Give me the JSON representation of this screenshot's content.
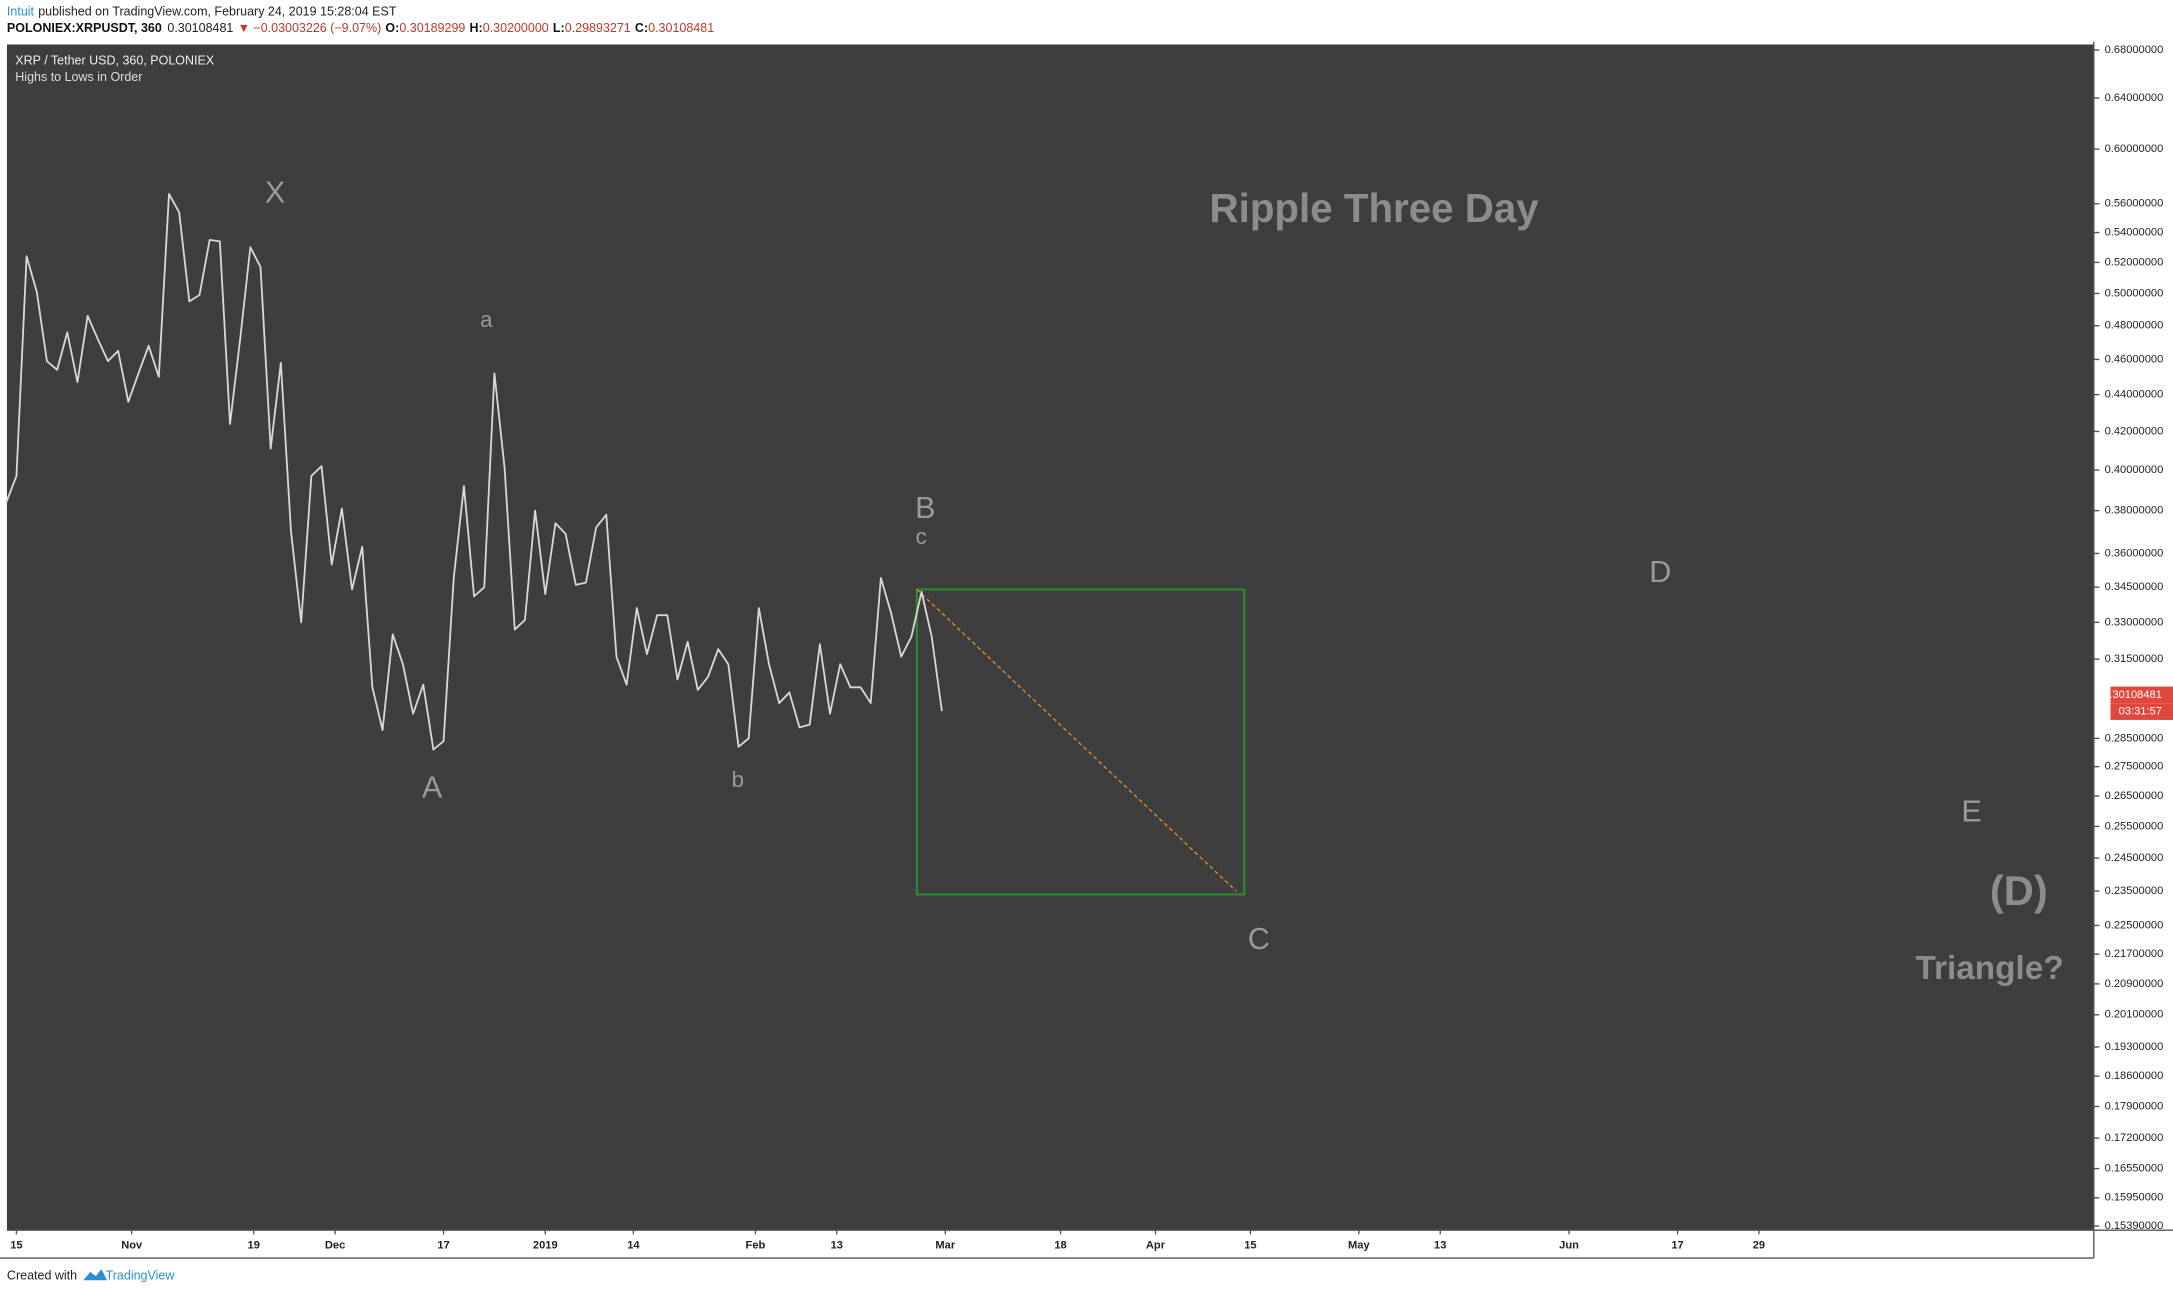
{
  "header": {
    "publisher": "Intuit",
    "published": "published on TradingView.com, February 24, 2019 15:28:04 EST",
    "symbol": "POLONIEX:XRPUSDT, 360",
    "price": "0.30108481",
    "change": "▼ −0.03003226 (−9.07%)",
    "ohlc": [
      {
        "label": "O:",
        "value": "0.30189299"
      },
      {
        "label": "H:",
        "value": "0.30200000"
      },
      {
        "label": "L:",
        "value": "0.29893271"
      },
      {
        "label": "C:",
        "value": "0.30108481"
      }
    ]
  },
  "footer": {
    "created": "Created with",
    "brand": "TradingView"
  },
  "chart_data": {
    "type": "line",
    "title": "XRP / Tether USD, 360, POLONIEX",
    "subtitle": "Highs to Lows in Order",
    "headline": "Ripple Three Day",
    "color": "#d8d8d8",
    "log_scale": true,
    "grid": false,
    "x": [
      -1.5,
      0,
      1.5,
      3,
      4.5,
      6,
      7.5,
      9,
      10.5,
      12,
      13.5,
      15,
      16.5,
      18,
      19.5,
      21,
      22.5,
      24,
      25.5,
      27,
      28.5,
      30,
      31.5,
      33,
      34.5,
      36,
      37.5,
      39,
      40.5,
      42,
      43.5,
      45,
      46.5,
      48,
      49.5,
      51,
      52.5,
      54,
      55.5,
      57,
      58.5,
      60,
      61.5,
      63,
      64.5,
      66,
      67.5,
      69,
      70.5,
      72,
      73.5,
      75,
      76.5,
      78,
      79.5,
      81,
      82.5,
      84,
      85.5,
      87,
      88.5,
      90,
      91.5,
      93,
      94.5,
      96,
      97.5,
      99,
      100.5,
      102,
      103.5,
      105,
      106.5,
      108,
      109.5,
      111,
      112.5,
      114,
      115.5,
      117,
      118.5,
      120,
      121.5,
      123,
      124.5,
      126,
      127.5,
      129,
      130.5,
      132,
      133.5,
      135,
      136.5
    ],
    "values": [
      0.384,
      0.397,
      0.524,
      0.501,
      0.459,
      0.454,
      0.476,
      0.447,
      0.486,
      0.472,
      0.459,
      0.465,
      0.436,
      0.452,
      0.468,
      0.45,
      0.567,
      0.554,
      0.495,
      0.499,
      0.535,
      0.534,
      0.424,
      0.472,
      0.53,
      0.517,
      0.411,
      0.458,
      0.37,
      0.33,
      0.397,
      0.402,
      0.355,
      0.381,
      0.344,
      0.363,
      0.304,
      0.288,
      0.325,
      0.313,
      0.294,
      0.305,
      0.281,
      0.284,
      0.349,
      0.392,
      0.341,
      0.345,
      0.452,
      0.401,
      0.327,
      0.331,
      0.38,
      0.342,
      0.374,
      0.369,
      0.346,
      0.347,
      0.372,
      0.378,
      0.316,
      0.305,
      0.336,
      0.317,
      0.333,
      0.333,
      0.307,
      0.322,
      0.303,
      0.308,
      0.319,
      0.313,
      0.282,
      0.285,
      0.336,
      0.313,
      0.298,
      0.302,
      0.289,
      0.29,
      0.321,
      0.294,
      0.313,
      0.304,
      0.304,
      0.298,
      0.349,
      0.334,
      0.316,
      0.324,
      0.343,
      0.324,
      0.295
    ],
    "xlim": [
      -1.4,
      306.4
    ],
    "xticks": [
      {
        "value": 0,
        "label": "15"
      },
      {
        "value": 17,
        "label": "Nov"
      },
      {
        "value": 35,
        "label": "19"
      },
      {
        "value": 47,
        "label": "Dec"
      },
      {
        "value": 63,
        "label": "17"
      },
      {
        "value": 78,
        "label": "2019"
      },
      {
        "value": 91,
        "label": "14"
      },
      {
        "value": 109,
        "label": "Feb"
      },
      {
        "value": 121,
        "label": "13"
      },
      {
        "value": 137,
        "label": "Mar"
      },
      {
        "value": 154,
        "label": "18"
      },
      {
        "value": 168,
        "label": "Apr"
      },
      {
        "value": 182,
        "label": "15"
      },
      {
        "value": 198,
        "label": "May"
      },
      {
        "value": 210,
        "label": "13"
      },
      {
        "value": 229,
        "label": "Jun"
      },
      {
        "value": 245,
        "label": "17"
      },
      {
        "value": 257,
        "label": "29"
      }
    ],
    "ylim": [
      0.1531,
      0.6848
    ],
    "yticks": [
      {
        "value": 0.68,
        "label": "0.68000000"
      },
      {
        "value": 0.64,
        "label": "0.64000000"
      },
      {
        "value": 0.6,
        "label": "0.60000000"
      },
      {
        "value": 0.56,
        "label": "0.56000000"
      },
      {
        "value": 0.54,
        "label": "0.54000000"
      },
      {
        "value": 0.52,
        "label": "0.52000000"
      },
      {
        "value": 0.5,
        "label": "0.50000000"
      },
      {
        "value": 0.48,
        "label": "0.48000000"
      },
      {
        "value": 0.46,
        "label": "0.46000000"
      },
      {
        "value": 0.44,
        "label": "0.44000000"
      },
      {
        "value": 0.42,
        "label": "0.42000000"
      },
      {
        "value": 0.4,
        "label": "0.40000000"
      },
      {
        "value": 0.38,
        "label": "0.38000000"
      },
      {
        "value": 0.36,
        "label": "0.36000000"
      },
      {
        "value": 0.345,
        "label": "0.34500000"
      },
      {
        "value": 0.33,
        "label": "0.33000000"
      },
      {
        "value": 0.315,
        "label": "0.31500000"
      },
      {
        "value": 0.285,
        "label": "0.28500000"
      },
      {
        "value": 0.275,
        "label": "0.27500000"
      },
      {
        "value": 0.265,
        "label": "0.26500000"
      },
      {
        "value": 0.255,
        "label": "0.25500000"
      },
      {
        "value": 0.245,
        "label": "0.24500000"
      },
      {
        "value": 0.235,
        "label": "0.23500000"
      },
      {
        "value": 0.225,
        "label": "0.22500000"
      },
      {
        "value": 0.217,
        "label": "0.21700000"
      },
      {
        "value": 0.209,
        "label": "0.20900000"
      },
      {
        "value": 0.201,
        "label": "0.20100000"
      },
      {
        "value": 0.193,
        "label": "0.19300000"
      },
      {
        "value": 0.186,
        "label": "0.18600000"
      },
      {
        "value": 0.179,
        "label": "0.17900000"
      },
      {
        "value": 0.172,
        "label": "0.17200000"
      },
      {
        "value": 0.1655,
        "label": "0.16550000"
      },
      {
        "value": 0.1595,
        "label": "0.15950000"
      },
      {
        "value": 0.1539,
        "label": "0.15390000"
      }
    ],
    "last_price": 0.30108481,
    "countdown": "03:31:57",
    "last_price_color": "#e0483e",
    "box": {
      "x": [
        132.8,
        181.1
      ],
      "y": [
        0.344,
        0.234
      ],
      "color": "#2f8a2f"
    },
    "trend_line": {
      "x": [
        132.8,
        179.9
      ],
      "y": [
        0.344,
        0.235
      ],
      "color": "#d98a2b"
    },
    "annotations": [
      "X",
      "a",
      "A",
      "b",
      "B",
      "c",
      "C",
      "D",
      "E",
      "(D)",
      "Triangle?"
    ]
  }
}
